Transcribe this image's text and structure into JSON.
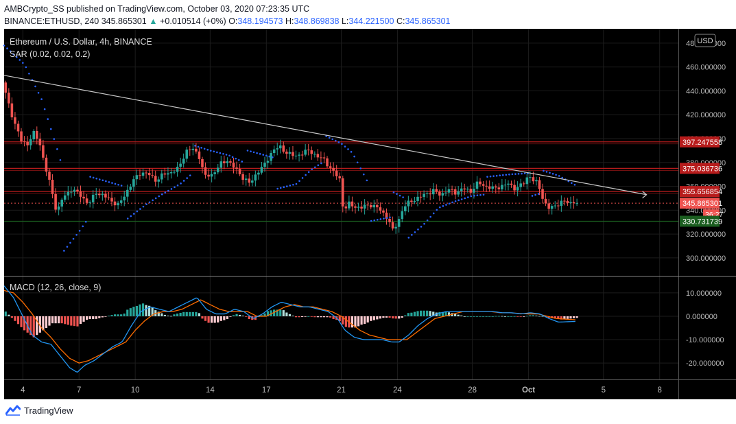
{
  "header": {
    "line1": "AMBCrypto_SS published on TradingView.com, October 03, 2020 07:23:35 UTC",
    "symbol": "BINANCE:ETHUSD, 240",
    "last": "345.865301",
    "change_arrow": "▲",
    "change": "+0.010514 (+0%)",
    "o_label": "O:",
    "o": "348.194573",
    "h_label": "H:",
    "h": "348.869838",
    "l_label": "L:",
    "l": "344.221500",
    "c_label": "C:",
    "c": "345.865301"
  },
  "price_pane": {
    "title": "Ethereum / U.S. Dollar, 4h, BINANCE",
    "indicator": "SAR (0.02, 0.02, 0.2)",
    "currency": "USD",
    "countdown": "36:27"
  },
  "macd_pane": {
    "legend": "MACD (12, 26, close, 9)"
  },
  "footer": {
    "brand": "TradingView"
  },
  "colors": {
    "background": "#000000",
    "up": "#26a69a",
    "down": "#ef5350",
    "sar": "#2962ff",
    "macd_line": "#2196f3",
    "signal_line": "#ff6d00",
    "resistance": "#b71c1c",
    "support": "#1b5e20",
    "trendline": "#c8c8c8"
  },
  "chart_data": [
    {
      "type": "candlestick",
      "title": "Ethereum / U.S. Dollar, 4h, BINANCE",
      "ylim": [
        285,
        492
      ],
      "y_ticks": [
        "300.000000",
        "320.000000",
        "340.000000",
        "360.000000",
        "380.000000",
        "400.000000",
        "420.000000",
        "440.000000",
        "460.000000",
        "480.000000"
      ],
      "y_tick_values": [
        300,
        320,
        340,
        360,
        380,
        400,
        420,
        440,
        460,
        480
      ],
      "x_ticks": [
        "4",
        "7",
        "10",
        "14",
        "17",
        "21",
        "24",
        "28",
        "Oct",
        "5",
        "8"
      ],
      "x_tick_days": [
        4,
        7,
        10,
        14,
        17,
        21,
        24,
        28,
        31,
        35,
        38
      ],
      "day_range": [
        3.0,
        39.0
      ],
      "price_levels": [
        {
          "label": "397.247558",
          "value": 397.247558,
          "kind": "resistance"
        },
        {
          "label": "375.036736",
          "value": 375.036736,
          "kind": "resistance"
        },
        {
          "label": "355.656854",
          "value": 355.656854,
          "kind": "resistance"
        },
        {
          "label": "345.865301",
          "value": 345.865301,
          "kind": "current"
        },
        {
          "label": "330.731739",
          "value": 330.731739,
          "kind": "support"
        }
      ],
      "trendline": [
        [
          3.0,
          453
        ],
        [
          37.3,
          353
        ]
      ],
      "price_keypoints": [
        [
          3.0,
          447
        ],
        [
          3.3,
          430
        ],
        [
          3.6,
          415
        ],
        [
          4.0,
          398
        ],
        [
          4.3,
          395
        ],
        [
          4.7,
          405
        ],
        [
          5.0,
          395
        ],
        [
          5.3,
          375
        ],
        [
          5.6,
          358
        ],
        [
          5.9,
          338
        ],
        [
          6.2,
          350
        ],
        [
          6.7,
          358
        ],
        [
          7.2,
          352
        ],
        [
          7.6,
          345
        ],
        [
          8.0,
          355
        ],
        [
          8.4,
          352
        ],
        [
          8.8,
          348
        ],
        [
          9.2,
          344
        ],
        [
          9.6,
          355
        ],
        [
          10.0,
          365
        ],
        [
          10.4,
          372
        ],
        [
          10.8,
          370
        ],
        [
          11.2,
          365
        ],
        [
          11.6,
          370
        ],
        [
          12.0,
          372
        ],
        [
          12.4,
          375
        ],
        [
          12.8,
          390
        ],
        [
          13.2,
          391
        ],
        [
          13.5,
          385
        ],
        [
          13.8,
          368
        ],
        [
          14.2,
          370
        ],
        [
          14.6,
          378
        ],
        [
          15.0,
          382
        ],
        [
          15.4,
          375
        ],
        [
          15.8,
          368
        ],
        [
          16.2,
          362
        ],
        [
          16.6,
          372
        ],
        [
          17.0,
          378
        ],
        [
          17.4,
          390
        ],
        [
          17.8,
          393
        ],
        [
          18.2,
          388
        ],
        [
          18.6,
          385
        ],
        [
          19.0,
          388
        ],
        [
          19.4,
          390
        ],
        [
          19.8,
          385
        ],
        [
          20.2,
          382
        ],
        [
          20.6,
          373
        ],
        [
          21.0,
          366
        ],
        [
          21.2,
          340
        ],
        [
          21.5,
          345
        ],
        [
          21.8,
          343
        ],
        [
          22.2,
          342
        ],
        [
          22.6,
          345
        ],
        [
          23.0,
          342
        ],
        [
          23.3,
          338
        ],
        [
          23.6,
          333
        ],
        [
          23.8,
          322
        ],
        [
          24.1,
          330
        ],
        [
          24.4,
          342
        ],
        [
          24.8,
          348
        ],
        [
          25.2,
          350
        ],
        [
          25.6,
          354
        ],
        [
          26.0,
          356
        ],
        [
          26.4,
          353
        ],
        [
          26.8,
          357
        ],
        [
          27.2,
          355
        ],
        [
          27.6,
          358
        ],
        [
          28.0,
          356
        ],
        [
          28.4,
          363
        ],
        [
          28.8,
          360
        ],
        [
          29.2,
          358
        ],
        [
          29.6,
          360
        ],
        [
          30.0,
          362
        ],
        [
          30.4,
          358
        ],
        [
          30.8,
          362
        ],
        [
          31.1,
          370
        ],
        [
          31.3,
          365
        ],
        [
          31.6,
          362
        ],
        [
          31.8,
          352
        ],
        [
          32.1,
          341
        ],
        [
          32.4,
          343
        ],
        [
          32.7,
          346
        ],
        [
          33.0,
          347
        ],
        [
          33.3,
          346.5
        ],
        [
          33.5,
          345.87
        ]
      ],
      "sar_segments": [
        {
          "side": "above",
          "points": [
            [
              3.0,
              478
            ],
            [
              4.1,
              462
            ],
            [
              5.0,
              433
            ],
            [
              5.8,
              393
            ],
            [
              6.0,
              382
            ]
          ]
        },
        {
          "side": "below",
          "points": [
            [
              6.2,
              306
            ],
            [
              7.0,
              322
            ],
            [
              7.4,
              331
            ]
          ]
        },
        {
          "side": "above",
          "points": [
            [
              7.6,
              368
            ],
            [
              9.4,
              360
            ]
          ]
        },
        {
          "side": "below",
          "points": [
            [
              9.6,
              333
            ],
            [
              10.6,
              345
            ],
            [
              11.4,
              353
            ],
            [
              12.4,
              362
            ],
            [
              13.0,
              370
            ]
          ]
        },
        {
          "side": "above",
          "points": [
            [
              13.2,
              394
            ],
            [
              14.0,
              390
            ],
            [
              15.0,
              386
            ],
            [
              15.8,
              380
            ]
          ]
        },
        {
          "side": "above",
          "points": [
            [
              16.0,
              390
            ],
            [
              17.4,
              384
            ]
          ]
        },
        {
          "side": "below",
          "points": [
            [
              17.6,
              358
            ],
            [
              18.6,
              362
            ],
            [
              19.4,
              374
            ],
            [
              20.0,
              380
            ]
          ]
        },
        {
          "side": "above",
          "points": [
            [
              20.2,
              402
            ],
            [
              21.0,
              396
            ],
            [
              21.6,
              388
            ],
            [
              22.4,
              364
            ]
          ]
        },
        {
          "side": "below",
          "points": [
            [
              22.6,
              331
            ],
            [
              23.6,
              334
            ]
          ]
        },
        {
          "side": "above",
          "points": [
            [
              23.8,
              355
            ],
            [
              24.4,
              350
            ]
          ]
        },
        {
          "side": "below",
          "points": [
            [
              24.6,
              317
            ],
            [
              25.4,
              328
            ],
            [
              26.2,
              342
            ],
            [
              27.0,
              347
            ],
            [
              28.0,
              352
            ],
            [
              28.6,
              353
            ]
          ]
        },
        {
          "side": "above",
          "points": [
            [
              28.8,
              368
            ],
            [
              30.0,
              370
            ],
            [
              31.0,
              371
            ]
          ]
        },
        {
          "side": "below",
          "points": [
            [
              31.2,
              352
            ],
            [
              31.6,
              354
            ]
          ]
        },
        {
          "side": "above",
          "points": [
            [
              31.8,
              373
            ],
            [
              32.6,
              369
            ],
            [
              33.5,
              361
            ]
          ]
        }
      ]
    },
    {
      "type": "macd",
      "title": "MACD (12, 26, close, 9)",
      "ylim": [
        -27,
        17
      ],
      "y_ticks": [
        "10.000000",
        "0.000000",
        "-10.000000",
        "-20.000000"
      ],
      "y_tick_values": [
        10,
        0,
        -10,
        -20
      ],
      "macd_keypoints": [
        [
          3.0,
          13
        ],
        [
          3.5,
          8
        ],
        [
          4.0,
          0
        ],
        [
          4.5,
          -8
        ],
        [
          5.0,
          -11
        ],
        [
          5.5,
          -12
        ],
        [
          6.0,
          -17
        ],
        [
          6.5,
          -22
        ],
        [
          6.9,
          -24
        ],
        [
          7.3,
          -21
        ],
        [
          7.8,
          -19
        ],
        [
          8.3,
          -16
        ],
        [
          8.8,
          -13
        ],
        [
          9.3,
          -11
        ],
        [
          9.8,
          -4
        ],
        [
          10.3,
          2
        ],
        [
          10.8,
          4
        ],
        [
          11.3,
          3
        ],
        [
          11.8,
          2
        ],
        [
          12.3,
          4
        ],
        [
          12.8,
          6
        ],
        [
          13.3,
          8
        ],
        [
          13.8,
          3
        ],
        [
          14.3,
          1
        ],
        [
          14.8,
          1
        ],
        [
          15.3,
          3
        ],
        [
          15.8,
          2
        ],
        [
          16.3,
          -1
        ],
        [
          16.8,
          1
        ],
        [
          17.3,
          4
        ],
        [
          17.8,
          6
        ],
        [
          18.3,
          5
        ],
        [
          18.8,
          4
        ],
        [
          19.3,
          4
        ],
        [
          19.8,
          3
        ],
        [
          20.3,
          2
        ],
        [
          20.8,
          -1
        ],
        [
          21.2,
          -6
        ],
        [
          21.7,
          -9
        ],
        [
          22.2,
          -10
        ],
        [
          22.7,
          -10
        ],
        [
          23.2,
          -10
        ],
        [
          23.7,
          -11
        ],
        [
          24.1,
          -11
        ],
        [
          24.6,
          -8
        ],
        [
          25.1,
          -4
        ],
        [
          25.6,
          -1
        ],
        [
          26.1,
          1
        ],
        [
          26.6,
          2
        ],
        [
          27.1,
          2
        ],
        [
          27.6,
          2
        ],
        [
          28.1,
          2
        ],
        [
          28.6,
          2
        ],
        [
          29.1,
          2
        ],
        [
          29.6,
          1.5
        ],
        [
          30.1,
          1.5
        ],
        [
          30.6,
          1
        ],
        [
          31.1,
          1.5
        ],
        [
          31.6,
          1
        ],
        [
          32.1,
          -1
        ],
        [
          32.6,
          -2.5
        ],
        [
          33.5,
          -2.2
        ]
      ],
      "signal_keypoints": [
        [
          3.0,
          11
        ],
        [
          3.5,
          10
        ],
        [
          4.0,
          6
        ],
        [
          4.5,
          1
        ],
        [
          5.0,
          -5
        ],
        [
          5.5,
          -9
        ],
        [
          6.0,
          -14
        ],
        [
          6.5,
          -18
        ],
        [
          7.0,
          -20
        ],
        [
          7.5,
          -19
        ],
        [
          8.0,
          -17
        ],
        [
          8.5,
          -15
        ],
        [
          9.0,
          -13
        ],
        [
          9.5,
          -11
        ],
        [
          10.0,
          -6
        ],
        [
          10.5,
          -2
        ],
        [
          11.0,
          1
        ],
        [
          11.5,
          2
        ],
        [
          12.0,
          2
        ],
        [
          12.5,
          3
        ],
        [
          13.0,
          5
        ],
        [
          13.5,
          7
        ],
        [
          14.0,
          5
        ],
        [
          14.5,
          3
        ],
        [
          15.0,
          2
        ],
        [
          15.5,
          2
        ],
        [
          16.0,
          2
        ],
        [
          16.5,
          0
        ],
        [
          17.0,
          0
        ],
        [
          17.5,
          2
        ],
        [
          18.0,
          4
        ],
        [
          18.5,
          5
        ],
        [
          19.0,
          4
        ],
        [
          19.5,
          4
        ],
        [
          20.0,
          3
        ],
        [
          20.5,
          2
        ],
        [
          21.0,
          0
        ],
        [
          21.5,
          -3
        ],
        [
          22.0,
          -6
        ],
        [
          22.5,
          -8
        ],
        [
          23.0,
          -9
        ],
        [
          23.5,
          -10
        ],
        [
          24.0,
          -10
        ],
        [
          24.5,
          -10
        ],
        [
          25.0,
          -7
        ],
        [
          25.5,
          -4
        ],
        [
          26.0,
          -1
        ],
        [
          26.5,
          0
        ],
        [
          27.0,
          1
        ],
        [
          27.5,
          2
        ],
        [
          28.0,
          2
        ],
        [
          28.5,
          2
        ],
        [
          29.0,
          2
        ],
        [
          29.5,
          1.5
        ],
        [
          30.0,
          1.5
        ],
        [
          30.5,
          1.2
        ],
        [
          31.0,
          1
        ],
        [
          31.5,
          1
        ],
        [
          32.0,
          0
        ],
        [
          32.5,
          -1
        ],
        [
          33.5,
          -1.5
        ]
      ]
    }
  ]
}
